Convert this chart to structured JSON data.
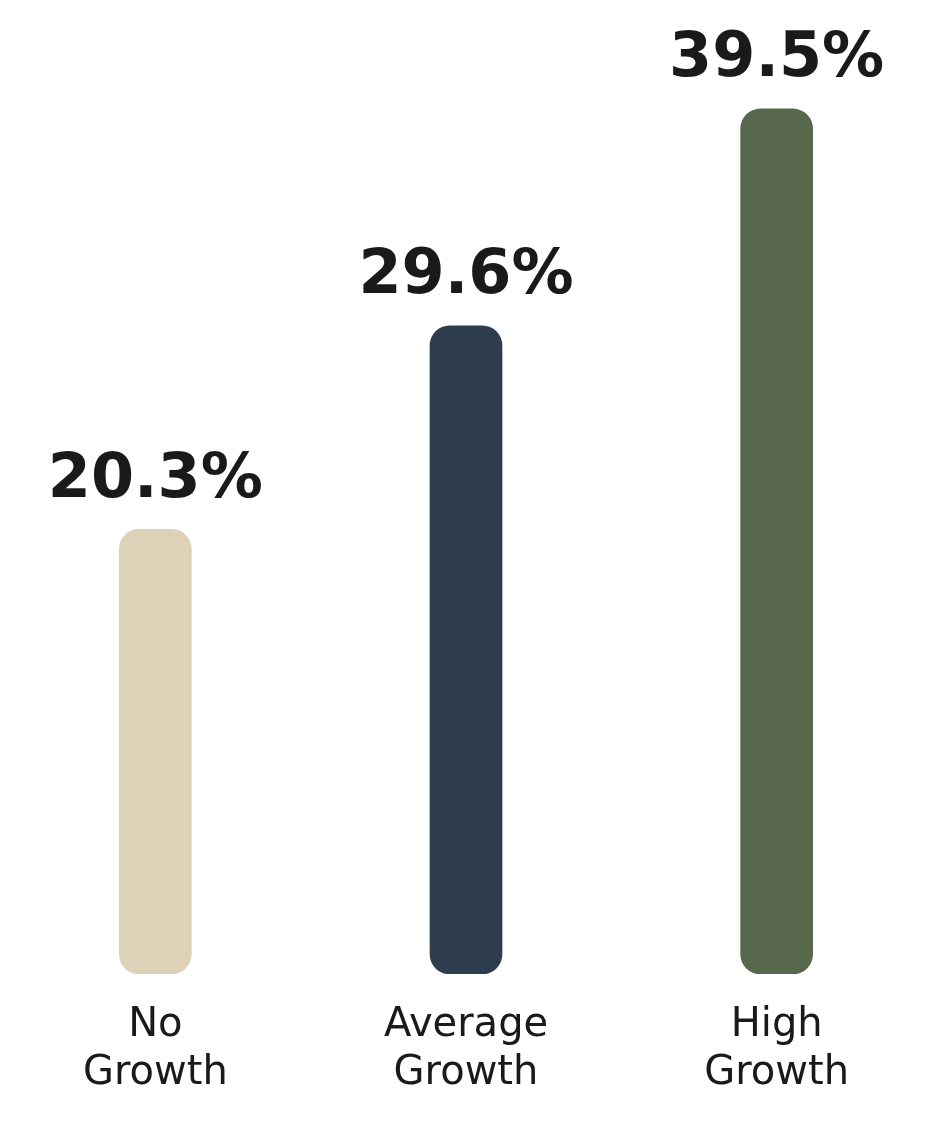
{
  "chart_data": {
    "type": "bar",
    "categories": [
      "No Growth",
      "Average Growth",
      "High Growth"
    ],
    "values": [
      20.3,
      29.6,
      39.5
    ],
    "colors": [
      "#ddd1b8",
      "#2e3d4d",
      "#58684d"
    ],
    "value_labels": [
      "20.3%",
      "29.6%",
      "39.5%"
    ],
    "grid": false,
    "legend": false
  }
}
